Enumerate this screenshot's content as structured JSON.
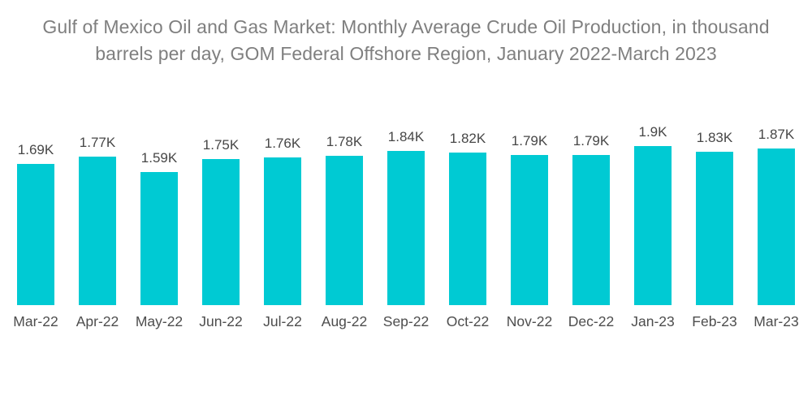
{
  "chart": {
    "title": "Gulf of Mexico Oil and Gas Market: Monthly Average Crude Oil Production, in thousand barrels per day, GOM Federal Offshore Region, January 2022-March 2023"
  },
  "chart_data": {
    "type": "bar",
    "title": "Gulf of Mexico Oil and Gas Market: Monthly Average Crude Oil Production, in thousand barrels per day, GOM Federal Offshore Region, January 2022-March 2023",
    "categories": [
      "Mar-22",
      "Apr-22",
      "May-22",
      "Jun-22",
      "Jul-22",
      "Aug-22",
      "Sep-22",
      "Oct-22",
      "Nov-22",
      "Dec-22",
      "Jan-23",
      "Feb-23",
      "Mar-23"
    ],
    "values": [
      1690,
      1770,
      1590,
      1750,
      1760,
      1780,
      1840,
      1820,
      1790,
      1790,
      1900,
      1830,
      1870
    ],
    "value_labels": [
      "1.69K",
      "1.77K",
      "1.59K",
      "1.75K",
      "1.76K",
      "1.78K",
      "1.84K",
      "1.82K",
      "1.79K",
      "1.79K",
      "1.9K",
      "1.83K",
      "1.87K"
    ],
    "unit": "thousand barrels per day",
    "xlabel": "",
    "ylabel": "",
    "ylim": [
      0,
      1900
    ],
    "grid": false,
    "legend": false,
    "bar_color": "#00cad3",
    "title_color": "#7f7f7f",
    "value_label_color": "#474747",
    "axis_label_color": "#4d4d4d",
    "background_color": "#ffffff"
  }
}
